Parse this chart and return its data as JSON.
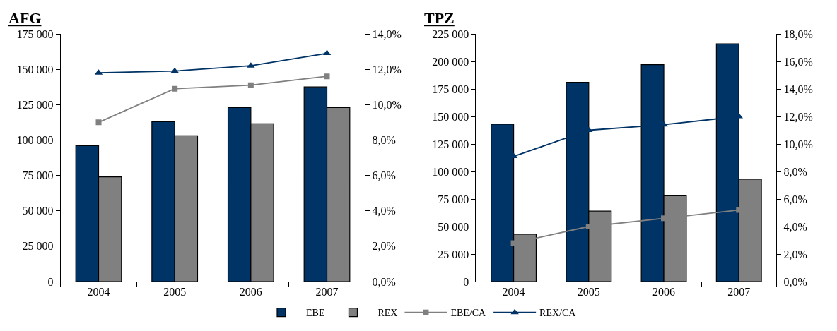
{
  "chart_data": [
    {
      "type": "bar",
      "title": "AFG",
      "categories": [
        "2004",
        "2005",
        "2006",
        "2007"
      ],
      "series": [
        {
          "name": "EBE",
          "color": "#003366",
          "values": [
            96000,
            113000,
            123000,
            137500
          ]
        },
        {
          "name": "REX",
          "color": "#808080",
          "values": [
            74000,
            103000,
            111500,
            123000
          ]
        },
        {
          "name": "EBE/CA",
          "type": "line",
          "axis": "y2",
          "color": "#808080",
          "marker": "square",
          "values": [
            9.0,
            10.9,
            11.1,
            11.6
          ]
        },
        {
          "name": "REX/CA",
          "type": "line",
          "axis": "y2",
          "color": "#003366",
          "marker": "triangle",
          "values": [
            11.8,
            11.9,
            12.2,
            12.9
          ]
        }
      ],
      "ylim": [
        0,
        175000
      ],
      "yticks": [
        {
          "value": 0,
          "label": "0"
        },
        {
          "value": 25000,
          "label": "25 000"
        },
        {
          "value": 50000,
          "label": "50 000"
        },
        {
          "value": 75000,
          "label": "75 000"
        },
        {
          "value": 100000,
          "label": "100 000"
        },
        {
          "value": 125000,
          "label": "125 000"
        },
        {
          "value": 150000,
          "label": "150 000"
        },
        {
          "value": 175000,
          "label": "175 000"
        }
      ],
      "y2lim": [
        0,
        14
      ],
      "y2ticks": [
        {
          "value": 0,
          "label": "0,0%"
        },
        {
          "value": 2,
          "label": "2,0%"
        },
        {
          "value": 4,
          "label": "4,0%"
        },
        {
          "value": 6,
          "label": "6,0%"
        },
        {
          "value": 8,
          "label": "8,0%"
        },
        {
          "value": 10,
          "label": "10,0%"
        },
        {
          "value": 12,
          "label": "12,0%"
        },
        {
          "value": 14,
          "label": "14,0%"
        }
      ],
      "legend": "bottom"
    },
    {
      "type": "bar",
      "title": "TPZ",
      "categories": [
        "2004",
        "2005",
        "2006",
        "2007"
      ],
      "series": [
        {
          "name": "EBE",
          "color": "#003366",
          "values": [
            143000,
            181000,
            197000,
            216000
          ]
        },
        {
          "name": "REX",
          "color": "#808080",
          "values": [
            43000,
            64000,
            78000,
            93000
          ]
        },
        {
          "name": "EBE/CA",
          "type": "line",
          "axis": "y2",
          "color": "#808080",
          "marker": "square",
          "values": [
            2.8,
            4.0,
            4.6,
            5.2
          ]
        },
        {
          "name": "REX/CA",
          "type": "line",
          "axis": "y2",
          "color": "#003366",
          "marker": "triangle",
          "values": [
            9.1,
            11.0,
            11.4,
            12.0
          ]
        }
      ],
      "ylim": [
        0,
        225000
      ],
      "yticks": [
        {
          "value": 0,
          "label": "0"
        },
        {
          "value": 25000,
          "label": "25 000"
        },
        {
          "value": 50000,
          "label": "50 000"
        },
        {
          "value": 75000,
          "label": "75 000"
        },
        {
          "value": 100000,
          "label": "100 000"
        },
        {
          "value": 125000,
          "label": "125 000"
        },
        {
          "value": 150000,
          "label": "150 000"
        },
        {
          "value": 175000,
          "label": "175 000"
        },
        {
          "value": 200000,
          "label": "200 000"
        },
        {
          "value": 225000,
          "label": "225 000"
        }
      ],
      "y2lim": [
        0,
        18
      ],
      "y2ticks": [
        {
          "value": 0,
          "label": "0,0%"
        },
        {
          "value": 2,
          "label": "2,0%"
        },
        {
          "value": 4,
          "label": "4,0%"
        },
        {
          "value": 6,
          "label": "6,0%"
        },
        {
          "value": 8,
          "label": "8,0%"
        },
        {
          "value": 10,
          "label": "10,0%"
        },
        {
          "value": 12,
          "label": "12,0%"
        },
        {
          "value": 14,
          "label": "14,0%"
        },
        {
          "value": 16,
          "label": "16,0%"
        },
        {
          "value": 18,
          "label": "18,0%"
        }
      ],
      "legend": "bottom"
    }
  ]
}
